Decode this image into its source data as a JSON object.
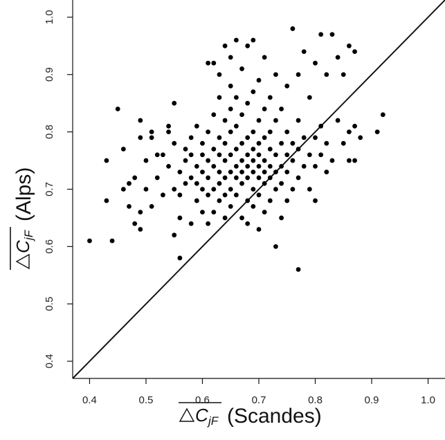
{
  "chart_data": {
    "type": "scatter",
    "title": "",
    "xlabel": {
      "symbol": "△C",
      "subscript": "jF",
      "suffix": "(Scandes)"
    },
    "ylabel": {
      "symbol": "△C",
      "subscript": "jF",
      "suffix": "(Alps)"
    },
    "xlim": [
      0.37,
      1.03
    ],
    "ylim": [
      0.37,
      1.03
    ],
    "xticks": [
      "0.4",
      "0.5",
      "0.6",
      "0.7",
      "0.8",
      "0.9",
      "1.0"
    ],
    "yticks": [
      "0.4",
      "0.5",
      "0.6",
      "0.7",
      "0.8",
      "0.9",
      "1.0"
    ],
    "reference_line": {
      "type": "identity",
      "from": [
        0.37,
        0.37
      ],
      "to": [
        1.03,
        1.03
      ]
    },
    "grid": false,
    "legend": "none",
    "point_color": "#000000",
    "points": [
      [
        0.4,
        0.61
      ],
      [
        0.44,
        0.61
      ],
      [
        0.43,
        0.68
      ],
      [
        0.43,
        0.75
      ],
      [
        0.45,
        0.84
      ],
      [
        0.46,
        0.77
      ],
      [
        0.46,
        0.7
      ],
      [
        0.47,
        0.67
      ],
      [
        0.47,
        0.71
      ],
      [
        0.48,
        0.64
      ],
      [
        0.48,
        0.72
      ],
      [
        0.49,
        0.63
      ],
      [
        0.49,
        0.66
      ],
      [
        0.49,
        0.79
      ],
      [
        0.49,
        0.82
      ],
      [
        0.5,
        0.7
      ],
      [
        0.5,
        0.75
      ],
      [
        0.51,
        0.67
      ],
      [
        0.51,
        0.79
      ],
      [
        0.51,
        0.8
      ],
      [
        0.52,
        0.72
      ],
      [
        0.52,
        0.76
      ],
      [
        0.53,
        0.69
      ],
      [
        0.53,
        0.76
      ],
      [
        0.54,
        0.74
      ],
      [
        0.54,
        0.8
      ],
      [
        0.54,
        0.81
      ],
      [
        0.55,
        0.62
      ],
      [
        0.55,
        0.7
      ],
      [
        0.55,
        0.78
      ],
      [
        0.55,
        0.85
      ],
      [
        0.56,
        0.58
      ],
      [
        0.56,
        0.65
      ],
      [
        0.56,
        0.69
      ],
      [
        0.56,
        0.73
      ],
      [
        0.57,
        0.71
      ],
      [
        0.57,
        0.75
      ],
      [
        0.57,
        0.77
      ],
      [
        0.58,
        0.64
      ],
      [
        0.58,
        0.72
      ],
      [
        0.58,
        0.76
      ],
      [
        0.58,
        0.79
      ],
      [
        0.59,
        0.68
      ],
      [
        0.59,
        0.71
      ],
      [
        0.59,
        0.74
      ],
      [
        0.59,
        0.81
      ],
      [
        0.6,
        0.66
      ],
      [
        0.6,
        0.7
      ],
      [
        0.6,
        0.73
      ],
      [
        0.6,
        0.76
      ],
      [
        0.6,
        0.78
      ],
      [
        0.61,
        0.64
      ],
      [
        0.61,
        0.69
      ],
      [
        0.61,
        0.72
      ],
      [
        0.61,
        0.75
      ],
      [
        0.61,
        0.8
      ],
      [
        0.61,
        0.92
      ],
      [
        0.62,
        0.66
      ],
      [
        0.62,
        0.7
      ],
      [
        0.62,
        0.74
      ],
      [
        0.62,
        0.77
      ],
      [
        0.62,
        0.83
      ],
      [
        0.62,
        0.92
      ],
      [
        0.63,
        0.68
      ],
      [
        0.63,
        0.71
      ],
      [
        0.63,
        0.73
      ],
      [
        0.63,
        0.76
      ],
      [
        0.63,
        0.79
      ],
      [
        0.63,
        0.86
      ],
      [
        0.63,
        0.9
      ],
      [
        0.64,
        0.65
      ],
      [
        0.64,
        0.69
      ],
      [
        0.64,
        0.72
      ],
      [
        0.64,
        0.75
      ],
      [
        0.64,
        0.78
      ],
      [
        0.64,
        0.82
      ],
      [
        0.64,
        0.95
      ],
      [
        0.65,
        0.67
      ],
      [
        0.65,
        0.7
      ],
      [
        0.65,
        0.73
      ],
      [
        0.65,
        0.76
      ],
      [
        0.65,
        0.8
      ],
      [
        0.65,
        0.84
      ],
      [
        0.65,
        0.88
      ],
      [
        0.65,
        0.93
      ],
      [
        0.66,
        0.69
      ],
      [
        0.66,
        0.72
      ],
      [
        0.66,
        0.74
      ],
      [
        0.66,
        0.77
      ],
      [
        0.66,
        0.81
      ],
      [
        0.66,
        0.86
      ],
      [
        0.66,
        0.96
      ],
      [
        0.67,
        0.65
      ],
      [
        0.67,
        0.71
      ],
      [
        0.67,
        0.73
      ],
      [
        0.67,
        0.75
      ],
      [
        0.67,
        0.78
      ],
      [
        0.67,
        0.83
      ],
      [
        0.67,
        0.91
      ],
      [
        0.68,
        0.64
      ],
      [
        0.68,
        0.68
      ],
      [
        0.68,
        0.72
      ],
      [
        0.68,
        0.74
      ],
      [
        0.68,
        0.76
      ],
      [
        0.68,
        0.79
      ],
      [
        0.68,
        0.85
      ],
      [
        0.68,
        0.95
      ],
      [
        0.69,
        0.67
      ],
      [
        0.69,
        0.7
      ],
      [
        0.69,
        0.73
      ],
      [
        0.69,
        0.75
      ],
      [
        0.69,
        0.77
      ],
      [
        0.69,
        0.8
      ],
      [
        0.69,
        0.87
      ],
      [
        0.69,
        0.96
      ],
      [
        0.7,
        0.63
      ],
      [
        0.7,
        0.69
      ],
      [
        0.7,
        0.72
      ],
      [
        0.7,
        0.74
      ],
      [
        0.7,
        0.76
      ],
      [
        0.7,
        0.78
      ],
      [
        0.7,
        0.82
      ],
      [
        0.7,
        0.89
      ],
      [
        0.71,
        0.66
      ],
      [
        0.71,
        0.71
      ],
      [
        0.71,
        0.73
      ],
      [
        0.71,
        0.75
      ],
      [
        0.71,
        0.79
      ],
      [
        0.71,
        0.84
      ],
      [
        0.71,
        0.93
      ],
      [
        0.72,
        0.68
      ],
      [
        0.72,
        0.72
      ],
      [
        0.72,
        0.74
      ],
      [
        0.72,
        0.77
      ],
      [
        0.72,
        0.8
      ],
      [
        0.72,
        0.86
      ],
      [
        0.73,
        0.6
      ],
      [
        0.73,
        0.7
      ],
      [
        0.73,
        0.73
      ],
      [
        0.73,
        0.76
      ],
      [
        0.73,
        0.82
      ],
      [
        0.73,
        0.9
      ],
      [
        0.74,
        0.65
      ],
      [
        0.74,
        0.71
      ],
      [
        0.74,
        0.74
      ],
      [
        0.74,
        0.78
      ],
      [
        0.74,
        0.84
      ],
      [
        0.75,
        0.68
      ],
      [
        0.75,
        0.73
      ],
      [
        0.75,
        0.76
      ],
      [
        0.75,
        0.8
      ],
      [
        0.75,
        0.88
      ],
      [
        0.76,
        0.7
      ],
      [
        0.76,
        0.75
      ],
      [
        0.76,
        0.78
      ],
      [
        0.76,
        0.98
      ],
      [
        0.77,
        0.56
      ],
      [
        0.77,
        0.72
      ],
      [
        0.77,
        0.77
      ],
      [
        0.77,
        0.82
      ],
      [
        0.77,
        0.9
      ],
      [
        0.78,
        0.74
      ],
      [
        0.78,
        0.79
      ],
      [
        0.78,
        0.94
      ],
      [
        0.79,
        0.7
      ],
      [
        0.79,
        0.76
      ],
      [
        0.79,
        0.86
      ],
      [
        0.8,
        0.68
      ],
      [
        0.8,
        0.74
      ],
      [
        0.8,
        0.79
      ],
      [
        0.8,
        0.92
      ],
      [
        0.81,
        0.76
      ],
      [
        0.81,
        0.81
      ],
      [
        0.81,
        0.97
      ],
      [
        0.82,
        0.73
      ],
      [
        0.82,
        0.78
      ],
      [
        0.82,
        0.9
      ],
      [
        0.83,
        0.75
      ],
      [
        0.83,
        0.97
      ],
      [
        0.84,
        0.82
      ],
      [
        0.84,
        0.93
      ],
      [
        0.85,
        0.78
      ],
      [
        0.85,
        0.9
      ],
      [
        0.86,
        0.75
      ],
      [
        0.86,
        0.8
      ],
      [
        0.86,
        0.95
      ],
      [
        0.87,
        0.75
      ],
      [
        0.87,
        0.81
      ],
      [
        0.87,
        0.94
      ],
      [
        0.88,
        0.79
      ],
      [
        0.91,
        0.8
      ],
      [
        0.92,
        0.83
      ]
    ]
  }
}
